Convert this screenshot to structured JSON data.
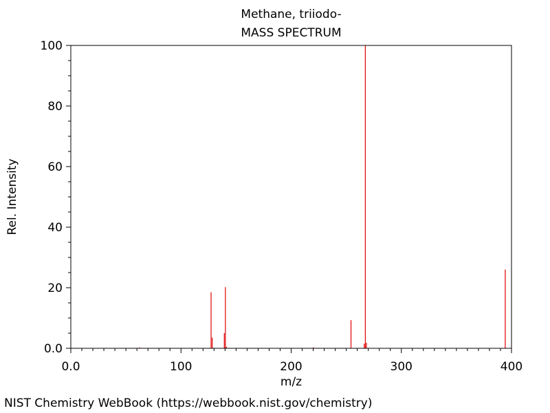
{
  "footer": "NIST Chemistry WebBook (https://webbook.nist.gov/chemistry)",
  "chart_data": {
    "type": "bar",
    "title": "Methane, triiodo-",
    "subtitle": "MASS SPECTRUM",
    "xlabel": "m/z",
    "ylabel": "Rel. Intensity",
    "xlim": [
      0,
      400
    ],
    "ylim": [
      0,
      100
    ],
    "x_ticks": [
      0,
      100,
      200,
      300,
      400
    ],
    "x_tick_labels": [
      "0.0",
      "100",
      "200",
      "300",
      "400"
    ],
    "y_ticks": [
      0,
      20,
      40,
      60,
      80,
      100
    ],
    "y_tick_labels": [
      "0.0",
      "20",
      "40",
      "60",
      "80",
      "100"
    ],
    "grid": false,
    "bar_color": "#e00000",
    "peaks": [
      {
        "mz": 62,
        "intensity": 0.3
      },
      {
        "mz": 127,
        "intensity": 18.5
      },
      {
        "mz": 128,
        "intensity": 3.5
      },
      {
        "mz": 139,
        "intensity": 5.0
      },
      {
        "mz": 140,
        "intensity": 20.2
      },
      {
        "mz": 141,
        "intensity": 0.5
      },
      {
        "mz": 220,
        "intensity": 0.3
      },
      {
        "mz": 254,
        "intensity": 9.3
      },
      {
        "mz": 266,
        "intensity": 1.5
      },
      {
        "mz": 267,
        "intensity": 100
      },
      {
        "mz": 268,
        "intensity": 1.8
      },
      {
        "mz": 394,
        "intensity": 26.0
      }
    ]
  }
}
